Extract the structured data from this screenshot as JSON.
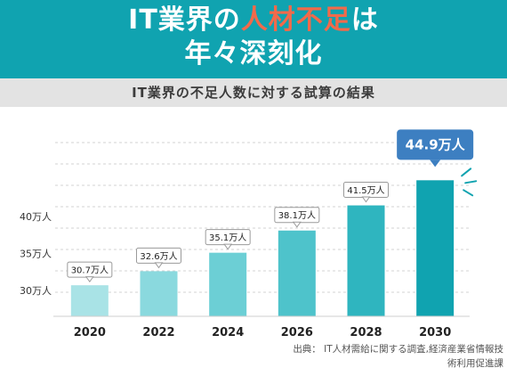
{
  "header": {
    "line1_a": "IT業界の",
    "line1_b": "人材不足",
    "line1_c": "は",
    "line2": "年々深刻化"
  },
  "subtitle": "IT業界の不足人数に対する試算の結果",
  "colors": {
    "banner": "#10a3b0",
    "accent_text": "#f26a4a",
    "bars": [
      "#a9e3e6",
      "#8ad9de",
      "#6ccfd5",
      "#4ec3cb",
      "#2fb5bf",
      "#10a3b0"
    ],
    "callout": "#3d7fc1"
  },
  "chart_data": {
    "type": "bar",
    "title": "IT業界の不足人数に対する試算の結果",
    "categories": [
      "2020",
      "2022",
      "2024",
      "2026",
      "2028",
      "2030"
    ],
    "values": [
      30.7,
      32.6,
      35.1,
      38.1,
      41.5,
      44.9
    ],
    "value_labels": [
      "30.7万人",
      "32.6万人",
      "35.1万人",
      "38.1万人",
      "41.5万人",
      "44.9万人"
    ],
    "y_ticks": [
      30,
      35,
      40
    ],
    "y_tick_labels": [
      "30万人",
      "35万人",
      "40万人"
    ],
    "ylim": [
      26.5,
      50
    ],
    "grid": true,
    "highlight_index": 5,
    "xlabel": "",
    "ylabel": ""
  },
  "source": {
    "line1": "出典： IT人材需給に関する調査,経済産業省情報技",
    "line2": "術利用促進課"
  }
}
